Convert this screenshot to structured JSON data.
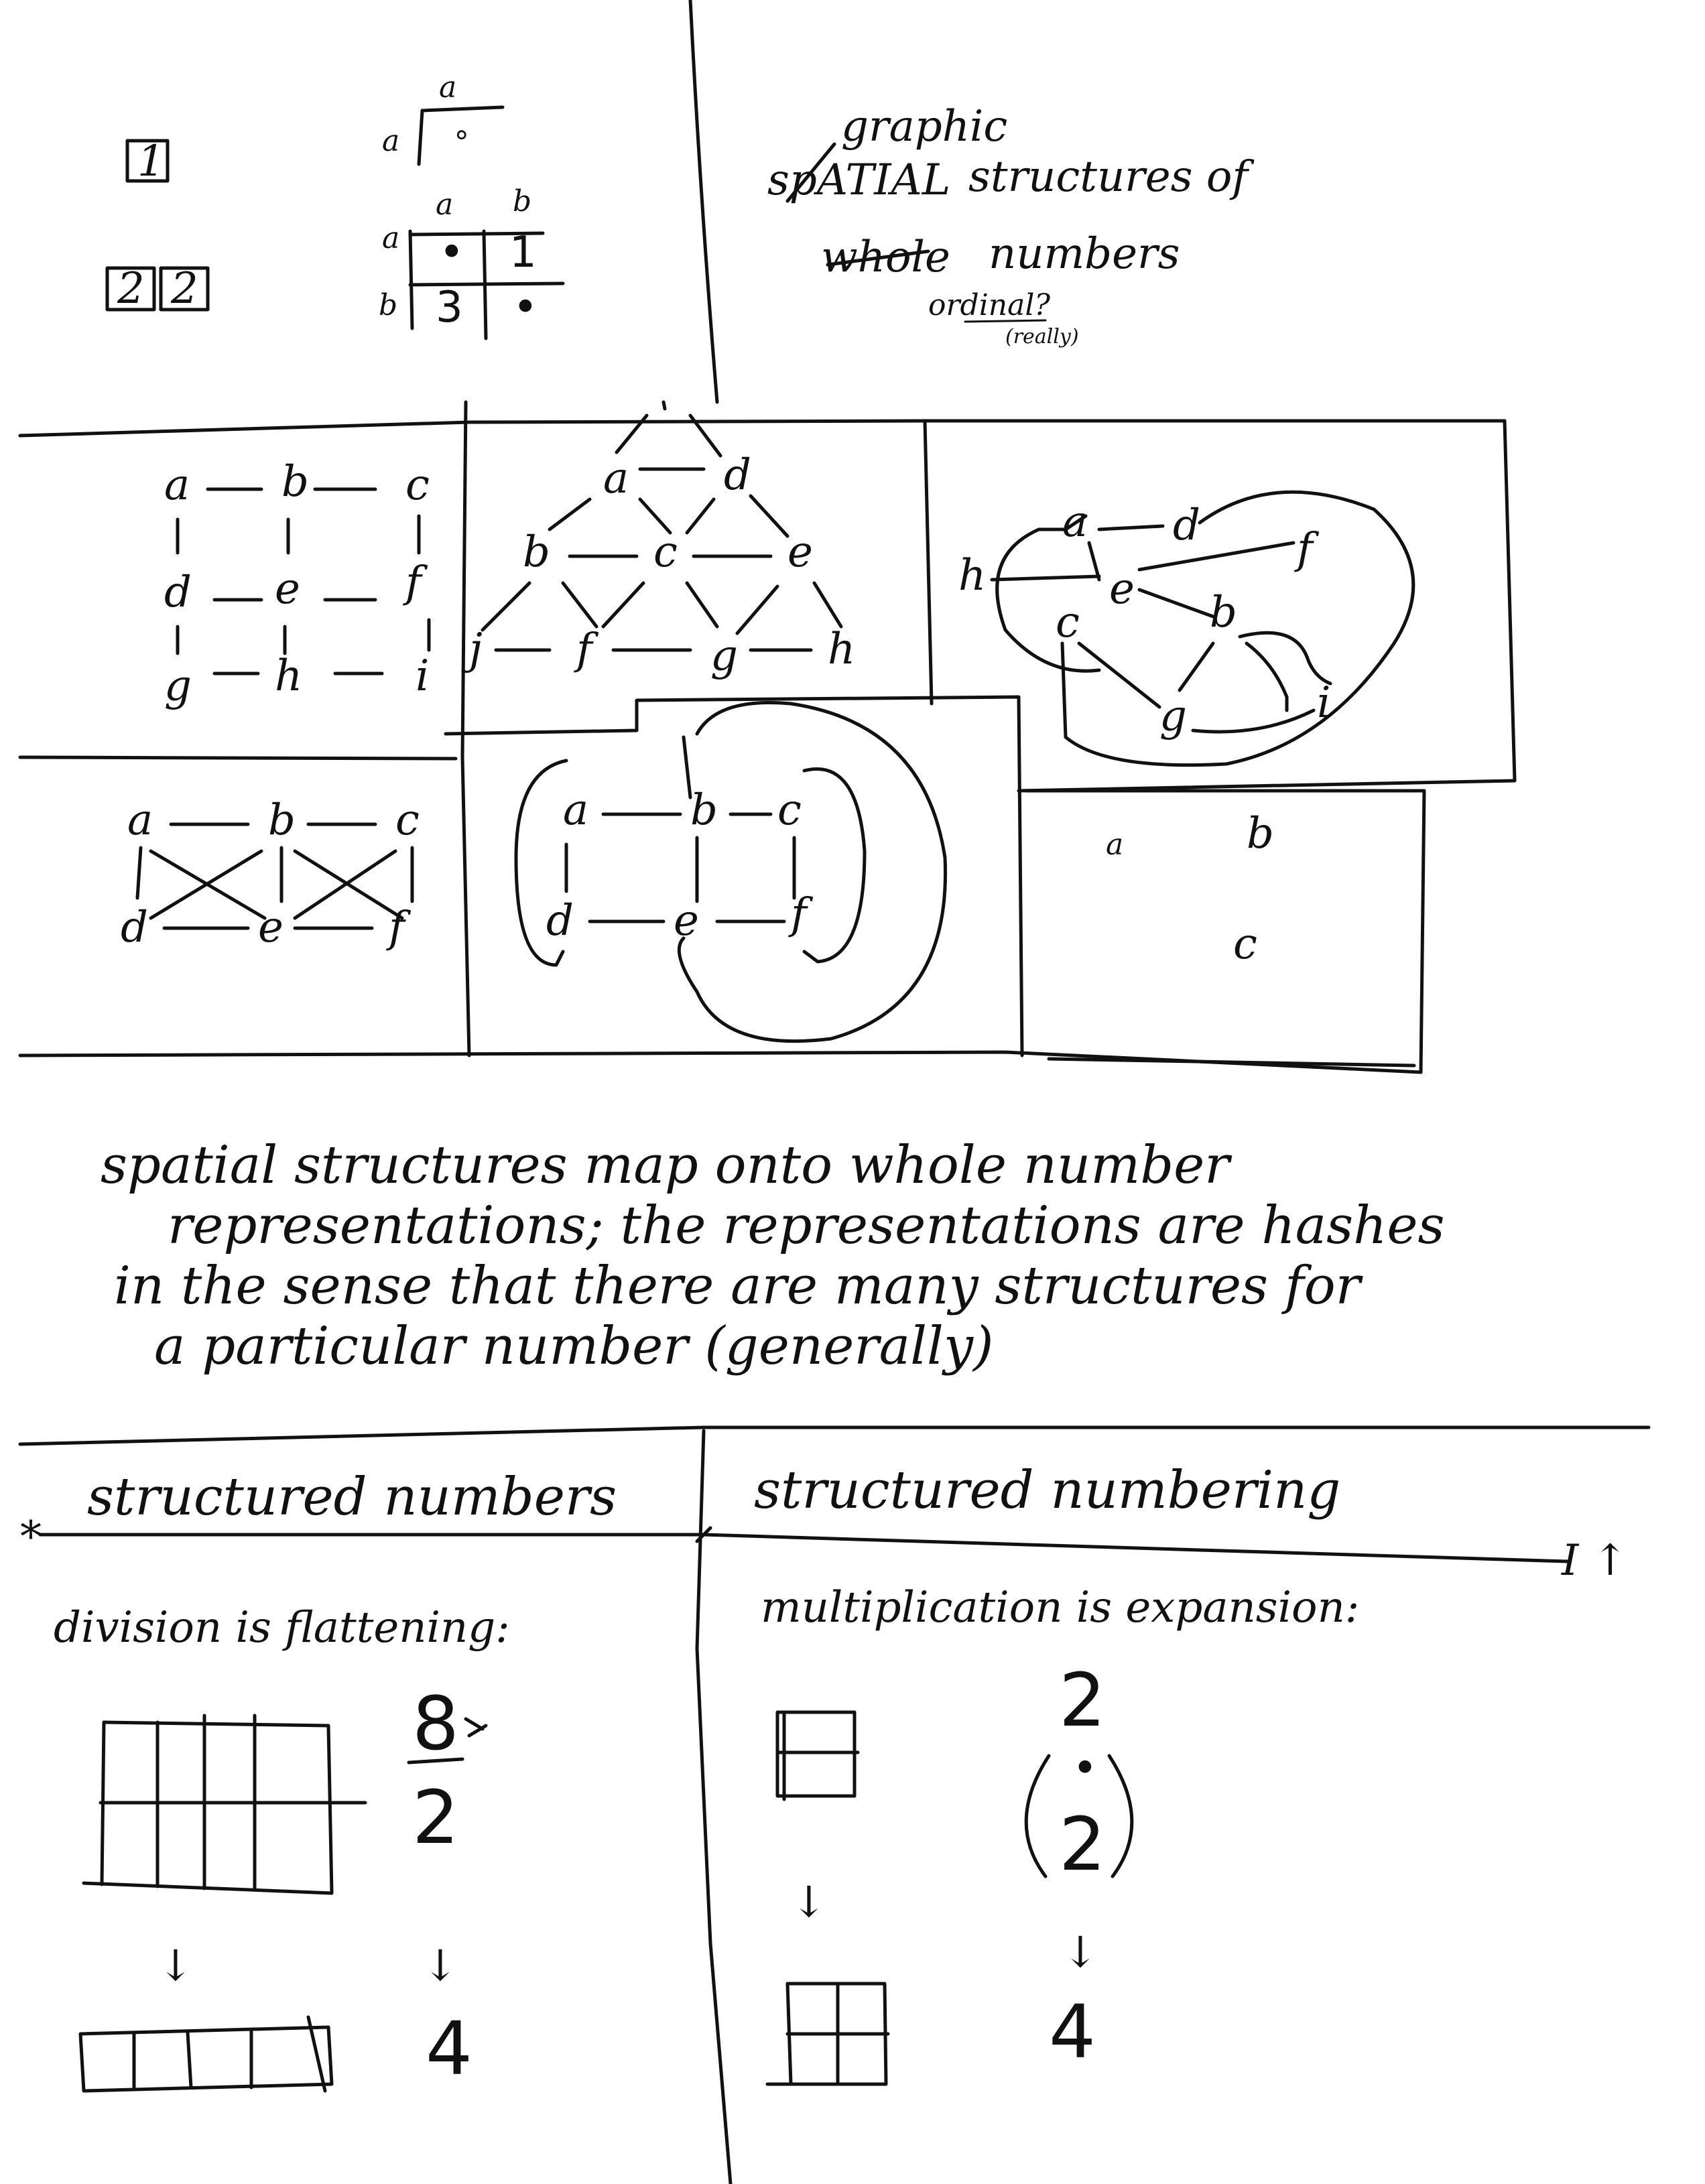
{
  "top_left": {
    "box_one": "1",
    "box_two_a": "2",
    "box_two_b": "2",
    "small_table": {
      "col": "a",
      "row": "a",
      "cell": "∘"
    },
    "table": {
      "cols": [
        "a",
        "b"
      ],
      "rows": [
        "a",
        "b"
      ],
      "cells": [
        [
          "•",
          "1"
        ],
        [
          "3",
          "•"
        ]
      ]
    }
  },
  "top_right": {
    "title_line1_insert": "graphic",
    "title_line1_struck": "spATIAL",
    "title_line1_rest": "structures of",
    "title_line2_struck": "whole",
    "title_line2_rest": "numbers",
    "note": "ordinal?",
    "note_sub": "(really)"
  },
  "graphs": {
    "g1": {
      "nodes": [
        "a",
        "b",
        "c",
        "d",
        "e",
        "f",
        "g",
        "h",
        "i"
      ]
    },
    "g2": {
      "nodes": [
        "a",
        "d",
        "b",
        "c",
        "e",
        "j",
        "f",
        "g",
        "h"
      ]
    },
    "g3": {
      "nodes": [
        "a",
        "d",
        "h",
        "e",
        "f",
        "c",
        "b",
        "g",
        "i"
      ]
    },
    "g4": {
      "nodes": [
        "a",
        "b",
        "c",
        "d",
        "e",
        "f"
      ]
    },
    "g5": {
      "nodes": [
        "a",
        "b",
        "c",
        "d",
        "e",
        "f"
      ]
    },
    "g6": {
      "nodes": [
        "a",
        "b",
        "c"
      ]
    }
  },
  "paragraph": [
    "spatial structures map onto whole number",
    "representations; the representations are hashes",
    "in the sense that there are many structures for",
    "a particular number (generally)"
  ],
  "bottom_left": {
    "heading": "structured numbers",
    "subheading": "division is flattening:",
    "fraction_top": "8",
    "fraction_bottom": "2",
    "arrow": "↓",
    "result": "4"
  },
  "bottom_right": {
    "heading": "structured numbering",
    "subheading": "multiplication is expansion:",
    "expr_top": "2",
    "expr_dot": "•",
    "expr_bottom": "2",
    "arrow": "↓",
    "result": "4"
  }
}
